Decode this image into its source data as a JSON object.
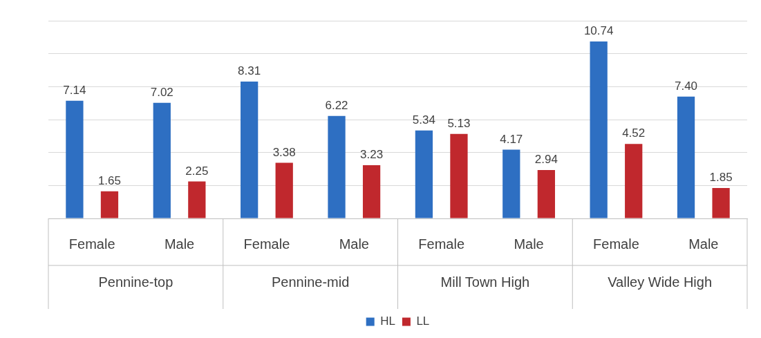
{
  "chart_data": {
    "type": "bar",
    "categories": [
      "Female",
      "Male",
      "Female",
      "Male",
      "Female",
      "Male",
      "Female",
      "Male"
    ],
    "annotations": [
      "Pennine-top",
      "Pennine-mid",
      "Mill Town High",
      "Valley Wide High"
    ],
    "series": [
      {
        "name": "HL",
        "color": "#2e6fc2",
        "values": [
          7.14,
          7.02,
          8.31,
          6.22,
          5.34,
          4.17,
          10.74,
          7.4
        ],
        "value_labels": [
          "7.14",
          "7.02",
          "8.31",
          "6.22",
          "5.34",
          "4.17",
          "10.74",
          "7.40"
        ]
      },
      {
        "name": "LL",
        "color": "#c0282d",
        "values": [
          1.65,
          2.25,
          3.38,
          3.23,
          5.13,
          2.94,
          4.52,
          1.85
        ],
        "value_labels": [
          "1.65",
          "2.25",
          "3.38",
          "3.23",
          "5.13",
          "2.94",
          "4.52",
          "1.85"
        ]
      }
    ],
    "grid": "y",
    "legend": "bottom",
    "tick_labels": "x"
  }
}
